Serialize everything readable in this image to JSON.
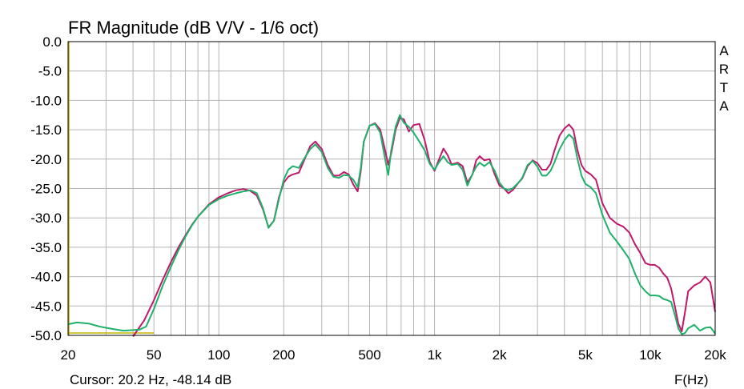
{
  "chart_data": {
    "type": "line",
    "title": "FR Magnitude (dB V/V - 1/6 oct)",
    "brand": "ARTA",
    "xlabel": "F(Hz)",
    "ylabel": "",
    "cursor_text": "Cursor: 20.2 Hz, -48.14 dB",
    "x_scale": "log",
    "xlim": [
      20,
      20000
    ],
    "ylim": [
      -50,
      0
    ],
    "grid": true,
    "x_ticks": [
      {
        "v": 20,
        "label": "20"
      },
      {
        "v": 50,
        "label": "50"
      },
      {
        "v": 100,
        "label": "100"
      },
      {
        "v": 200,
        "label": "200"
      },
      {
        "v": 500,
        "label": "500"
      },
      {
        "v": 1000,
        "label": "1k"
      },
      {
        "v": 2000,
        "label": "2k"
      },
      {
        "v": 5000,
        "label": "5k"
      },
      {
        "v": 10000,
        "label": "10k"
      },
      {
        "v": 20000,
        "label": "20k"
      }
    ],
    "y_ticks": [
      {
        "v": 0,
        "label": "0.0"
      },
      {
        "v": -5,
        "label": "-5.0"
      },
      {
        "v": -10,
        "label": "-10.0"
      },
      {
        "v": -15,
        "label": "-15.0"
      },
      {
        "v": -20,
        "label": "-20.0"
      },
      {
        "v": -25,
        "label": "-25.0"
      },
      {
        "v": -30,
        "label": "-30.0"
      },
      {
        "v": -35,
        "label": "-35.0"
      },
      {
        "v": -40,
        "label": "-40.0"
      },
      {
        "v": -45,
        "label": "-45.0"
      },
      {
        "v": -50,
        "label": "-50.0"
      }
    ],
    "colors": {
      "series1": "#c0186a",
      "series2": "#1fb06a",
      "cursor": "#c8b400",
      "frame": "#000000",
      "grid": "#b4b4b4"
    },
    "series": [
      {
        "points": [
          [
            40,
            -50.2
          ],
          [
            45,
            -47.5
          ],
          [
            50,
            -44
          ],
          [
            55,
            -40.5
          ],
          [
            60,
            -37.5
          ],
          [
            65,
            -35
          ],
          [
            70,
            -33
          ],
          [
            75,
            -31.2
          ],
          [
            80,
            -29.8
          ],
          [
            90,
            -27.7
          ],
          [
            100,
            -26.5
          ],
          [
            110,
            -25.8
          ],
          [
            120,
            -25.3
          ],
          [
            130,
            -25.1
          ],
          [
            140,
            -25.4
          ],
          [
            150,
            -26.2
          ],
          [
            160,
            -28.5
          ],
          [
            170,
            -31.6
          ],
          [
            180,
            -30.5
          ],
          [
            190,
            -26.5
          ],
          [
            200,
            -24
          ],
          [
            210,
            -23
          ],
          [
            220,
            -22.6
          ],
          [
            235,
            -22.3
          ],
          [
            250,
            -20
          ],
          [
            265,
            -17.8
          ],
          [
            280,
            -17
          ],
          [
            300,
            -18.3
          ],
          [
            320,
            -21
          ],
          [
            340,
            -22.8
          ],
          [
            360,
            -22.8
          ],
          [
            380,
            -22.2
          ],
          [
            400,
            -22.6
          ],
          [
            420,
            -24.3
          ],
          [
            440,
            -25.5
          ],
          [
            455,
            -22
          ],
          [
            470,
            -17
          ],
          [
            500,
            -14.3
          ],
          [
            530,
            -13.9
          ],
          [
            560,
            -15
          ],
          [
            590,
            -18.5
          ],
          [
            610,
            -21
          ],
          [
            630,
            -19
          ],
          [
            660,
            -15
          ],
          [
            690,
            -13
          ],
          [
            720,
            -13.2
          ],
          [
            760,
            -15.3
          ],
          [
            800,
            -14.2
          ],
          [
            850,
            -14
          ],
          [
            900,
            -16.8
          ],
          [
            950,
            -20.5
          ],
          [
            1000,
            -22
          ],
          [
            1050,
            -20
          ],
          [
            1100,
            -18.2
          ],
          [
            1150,
            -19.3
          ],
          [
            1200,
            -20.9
          ],
          [
            1280,
            -20.6
          ],
          [
            1350,
            -21.2
          ],
          [
            1420,
            -24
          ],
          [
            1500,
            -22.6
          ],
          [
            1560,
            -20.2
          ],
          [
            1620,
            -19.5
          ],
          [
            1700,
            -20.2
          ],
          [
            1800,
            -20
          ],
          [
            1900,
            -22.6
          ],
          [
            2000,
            -24.5
          ],
          [
            2100,
            -25
          ],
          [
            2200,
            -25.8
          ],
          [
            2300,
            -25.3
          ],
          [
            2450,
            -24
          ],
          [
            2550,
            -23.3
          ],
          [
            2700,
            -21.2
          ],
          [
            2850,
            -20.2
          ],
          [
            3000,
            -20.7
          ],
          [
            3150,
            -21.8
          ],
          [
            3300,
            -21.8
          ],
          [
            3450,
            -20.8
          ],
          [
            3600,
            -18.5
          ],
          [
            3800,
            -16
          ],
          [
            4000,
            -14.8
          ],
          [
            4200,
            -14.1
          ],
          [
            4400,
            -15
          ],
          [
            4600,
            -18.5
          ],
          [
            4800,
            -21
          ],
          [
            5000,
            -22
          ],
          [
            5300,
            -22.6
          ],
          [
            5600,
            -23.5
          ],
          [
            6000,
            -27.5
          ],
          [
            6500,
            -30
          ],
          [
            7000,
            -31
          ],
          [
            7500,
            -31.5
          ],
          [
            8000,
            -32.5
          ],
          [
            8500,
            -34.5
          ],
          [
            9000,
            -36
          ],
          [
            9500,
            -37.7
          ],
          [
            10000,
            -38
          ],
          [
            10500,
            -38
          ],
          [
            11000,
            -38.5
          ],
          [
            11500,
            -39.5
          ],
          [
            12000,
            -40.2
          ],
          [
            12500,
            -42
          ],
          [
            13000,
            -45
          ],
          [
            13500,
            -48
          ],
          [
            14000,
            -49.3
          ],
          [
            14500,
            -46
          ],
          [
            15000,
            -42.5
          ],
          [
            16000,
            -41.5
          ],
          [
            17000,
            -41
          ],
          [
            18000,
            -40
          ],
          [
            19000,
            -41
          ],
          [
            20000,
            -46
          ]
        ]
      },
      {
        "points": [
          [
            20,
            -48.1
          ],
          [
            22,
            -47.8
          ],
          [
            25,
            -48
          ],
          [
            28,
            -48.5
          ],
          [
            32,
            -48.9
          ],
          [
            36,
            -49.2
          ],
          [
            40,
            -49.1
          ],
          [
            43,
            -49
          ],
          [
            46,
            -48.5
          ],
          [
            50,
            -45.5
          ],
          [
            55,
            -41.5
          ],
          [
            60,
            -38.3
          ],
          [
            65,
            -35.5
          ],
          [
            70,
            -33.2
          ],
          [
            75,
            -31.3
          ],
          [
            80,
            -29.8
          ],
          [
            90,
            -27.8
          ],
          [
            100,
            -26.8
          ],
          [
            110,
            -26.2
          ],
          [
            120,
            -25.8
          ],
          [
            130,
            -25.5
          ],
          [
            140,
            -25.3
          ],
          [
            150,
            -25.8
          ],
          [
            160,
            -28.3
          ],
          [
            170,
            -31.7
          ],
          [
            180,
            -30.5
          ],
          [
            190,
            -26.8
          ],
          [
            200,
            -23.5
          ],
          [
            210,
            -21.8
          ],
          [
            220,
            -21.2
          ],
          [
            235,
            -21.5
          ],
          [
            250,
            -19.8
          ],
          [
            265,
            -18.3
          ],
          [
            280,
            -17.5
          ],
          [
            300,
            -18.8
          ],
          [
            320,
            -21.5
          ],
          [
            340,
            -23
          ],
          [
            360,
            -23.2
          ],
          [
            380,
            -22.7
          ],
          [
            400,
            -22.8
          ],
          [
            420,
            -23.5
          ],
          [
            440,
            -24.8
          ],
          [
            455,
            -21.5
          ],
          [
            470,
            -17
          ],
          [
            500,
            -14.3
          ],
          [
            530,
            -14
          ],
          [
            560,
            -15.5
          ],
          [
            590,
            -20
          ],
          [
            610,
            -22.7
          ],
          [
            630,
            -18.5
          ],
          [
            660,
            -14.5
          ],
          [
            690,
            -12.5
          ],
          [
            720,
            -13.8
          ],
          [
            760,
            -14.5
          ],
          [
            800,
            -15.5
          ],
          [
            850,
            -17
          ],
          [
            900,
            -18.5
          ],
          [
            950,
            -20.8
          ],
          [
            1000,
            -21.8
          ],
          [
            1050,
            -20.5
          ],
          [
            1100,
            -19.5
          ],
          [
            1150,
            -20.5
          ],
          [
            1200,
            -21
          ],
          [
            1280,
            -20.8
          ],
          [
            1350,
            -21.8
          ],
          [
            1420,
            -24.5
          ],
          [
            1500,
            -22.5
          ],
          [
            1560,
            -21.3
          ],
          [
            1620,
            -20.6
          ],
          [
            1700,
            -21.2
          ],
          [
            1800,
            -20.5
          ],
          [
            1900,
            -22
          ],
          [
            2000,
            -24
          ],
          [
            2100,
            -25
          ],
          [
            2200,
            -25.3
          ],
          [
            2300,
            -25
          ],
          [
            2450,
            -24
          ],
          [
            2550,
            -23.2
          ],
          [
            2700,
            -21
          ],
          [
            2850,
            -20.3
          ],
          [
            3000,
            -21.3
          ],
          [
            3150,
            -22.8
          ],
          [
            3300,
            -22.8
          ],
          [
            3450,
            -22
          ],
          [
            3600,
            -20.5
          ],
          [
            3800,
            -18.3
          ],
          [
            4000,
            -16.8
          ],
          [
            4200,
            -15.8
          ],
          [
            4400,
            -16.5
          ],
          [
            4600,
            -20
          ],
          [
            4800,
            -22.8
          ],
          [
            5000,
            -24.2
          ],
          [
            5300,
            -24.8
          ],
          [
            5600,
            -25.8
          ],
          [
            6000,
            -29.5
          ],
          [
            6500,
            -32.5
          ],
          [
            7000,
            -34
          ],
          [
            7500,
            -35.5
          ],
          [
            8000,
            -37
          ],
          [
            8500,
            -39.5
          ],
          [
            9000,
            -41.5
          ],
          [
            9500,
            -42.5
          ],
          [
            10000,
            -43.2
          ],
          [
            10500,
            -43.2
          ],
          [
            11000,
            -43.3
          ],
          [
            11500,
            -43.8
          ],
          [
            12000,
            -44
          ],
          [
            12500,
            -44.3
          ],
          [
            13000,
            -46.5
          ],
          [
            13500,
            -48.8
          ],
          [
            14000,
            -49.8
          ],
          [
            14500,
            -49.6
          ],
          [
            15000,
            -48.8
          ],
          [
            16000,
            -48.2
          ],
          [
            17000,
            -49.2
          ],
          [
            18000,
            -48.7
          ],
          [
            19000,
            -48.6
          ],
          [
            20000,
            -49.7
          ]
        ]
      }
    ]
  }
}
